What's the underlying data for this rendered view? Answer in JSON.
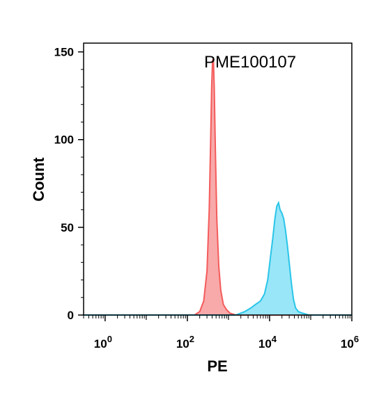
{
  "chart_data": {
    "type": "area",
    "title": "",
    "annotation": "PME100107",
    "xlabel": "PE",
    "ylabel": "Count",
    "x_scale": "log",
    "xlim": [
      0.3,
      1000000
    ],
    "ylim": [
      0,
      155
    ],
    "x_ticks": [
      {
        "base": "10",
        "exp": "0",
        "value": 1
      },
      {
        "base": "10",
        "exp": "2",
        "value": 100
      },
      {
        "base": "10",
        "exp": "4",
        "value": 10000
      },
      {
        "base": "10",
        "exp": "6",
        "value": 1000000
      }
    ],
    "y_ticks": [
      {
        "label": "0",
        "value": 0
      },
      {
        "label": "50",
        "value": 50
      },
      {
        "label": "100",
        "value": 100
      },
      {
        "label": "150",
        "value": 150
      }
    ],
    "series": [
      {
        "color": "#f45b5b",
        "fill": "#f7a0a0",
        "points": [
          [
            0.3,
            0
          ],
          [
            150,
            0
          ],
          [
            200,
            2
          ],
          [
            250,
            8
          ],
          [
            300,
            25
          ],
          [
            340,
            60
          ],
          [
            370,
            100
          ],
          [
            390,
            130
          ],
          [
            410,
            145
          ],
          [
            430,
            146
          ],
          [
            450,
            130
          ],
          [
            480,
            95
          ],
          [
            520,
            55
          ],
          [
            580,
            28
          ],
          [
            650,
            14
          ],
          [
            750,
            6
          ],
          [
            900,
            3
          ],
          [
            1100,
            1
          ],
          [
            1500,
            0
          ],
          [
            1000000,
            0
          ]
        ]
      },
      {
        "color": "#29c5e8",
        "fill": "#8ee3f7",
        "points": [
          [
            0.3,
            0
          ],
          [
            1500,
            0
          ],
          [
            2500,
            2
          ],
          [
            3500,
            4
          ],
          [
            4500,
            6
          ],
          [
            6000,
            8
          ],
          [
            7500,
            12
          ],
          [
            9000,
            20
          ],
          [
            10500,
            33
          ],
          [
            12000,
            44
          ],
          [
            13500,
            55
          ],
          [
            15000,
            62
          ],
          [
            16500,
            64
          ],
          [
            18000,
            60
          ],
          [
            20000,
            58
          ],
          [
            22000,
            55
          ],
          [
            24500,
            48
          ],
          [
            27000,
            40
          ],
          [
            30000,
            30
          ],
          [
            34000,
            18
          ],
          [
            38000,
            9
          ],
          [
            43000,
            4
          ],
          [
            50000,
            2
          ],
          [
            65000,
            1
          ],
          [
            90000,
            0
          ],
          [
            1000000,
            0
          ]
        ]
      }
    ],
    "grid": false,
    "legend": "none"
  }
}
